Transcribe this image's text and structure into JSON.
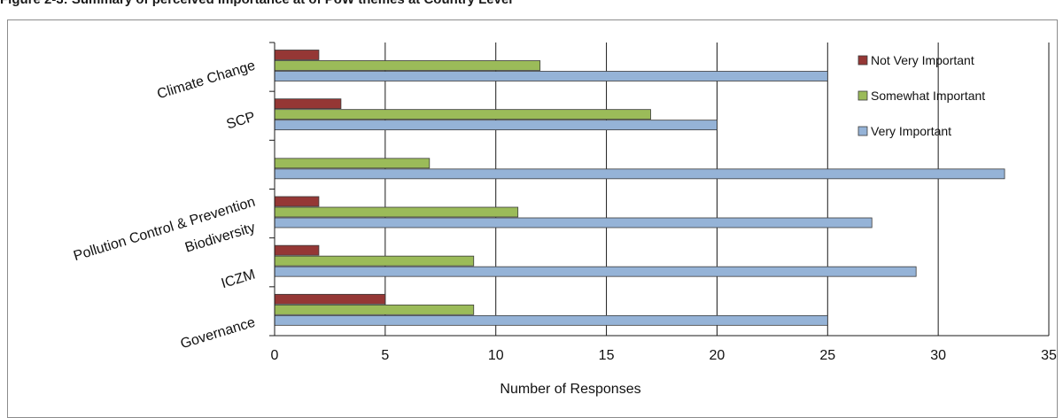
{
  "figure": {
    "title": "Figure 2-3: Summary of perceived importance at of PoW themes at Country Level"
  },
  "chart_data": {
    "type": "bar",
    "orientation": "horizontal",
    "title": "",
    "xlabel": "Number of Responses",
    "ylabel": "",
    "xlim": [
      0,
      35
    ],
    "x_ticks": [
      0,
      5,
      10,
      15,
      20,
      25,
      30,
      35
    ],
    "categories": [
      "Climate Change",
      "SCP",
      "Pollution Control  & Prevention",
      "Biodiversity",
      "ICZM",
      "Governance"
    ],
    "series": [
      {
        "name": "Not Very Important",
        "color": "#953735",
        "values": [
          2,
          3,
          0,
          2,
          2,
          5
        ]
      },
      {
        "name": "Somewhat Important",
        "color": "#9bbb59",
        "values": [
          12,
          17,
          7,
          11,
          9,
          9
        ]
      },
      {
        "name": "Very Important",
        "color": "#95b3d7",
        "values": [
          25,
          20,
          33,
          27,
          29,
          25
        ]
      }
    ],
    "grid": {
      "vertical": true,
      "horizontal": false
    },
    "legend_position": "top-right"
  }
}
